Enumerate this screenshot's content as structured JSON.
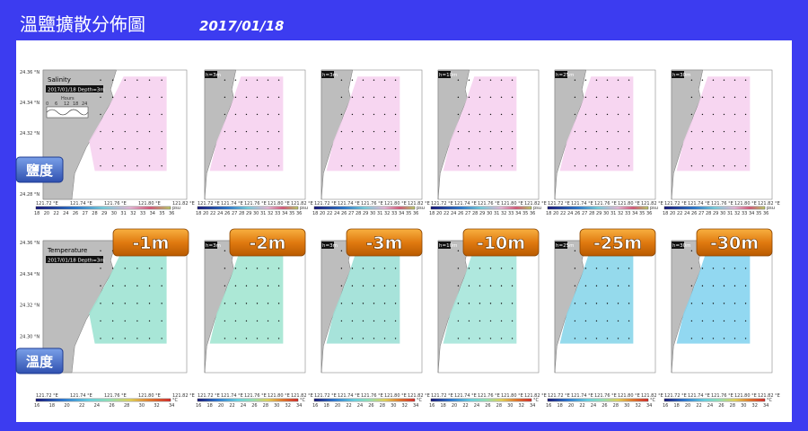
{
  "header": {
    "title": "溫鹽擴散分佈圖",
    "date": "2017/01/18"
  },
  "rows": [
    {
      "label": "鹽度",
      "variable": "Salinity",
      "unit": "psu",
      "colorbar_ticks": [
        "18",
        "20",
        "22",
        "24",
        "26",
        "27",
        "28",
        "29",
        "30",
        "31",
        "32",
        "33",
        "34",
        "35",
        "36"
      ]
    },
    {
      "label": "溫度",
      "variable": "Temperature",
      "unit": "°C",
      "colorbar_ticks": [
        "16",
        "18",
        "20",
        "22",
        "24",
        "26",
        "28",
        "30",
        "32",
        "34"
      ]
    }
  ],
  "depths": [
    "-1m",
    "-2m",
    "-3m",
    "-10m",
    "-25m",
    "-30m"
  ],
  "panel_caption": "2017/01/18 Depth=3m",
  "panel_captions_clipped": [
    "h=3m",
    "h=3m",
    "h=10m",
    "h=25m",
    "h=30m"
  ],
  "lat_labels": [
    "24.36 °N",
    "24.34 °N",
    "24.32 °N",
    "24.30 °N",
    "24.28 °N"
  ],
  "lon_labels": [
    "121.72 °E",
    "121.74 °E",
    "121.76 °E",
    "121.80 °E",
    "121.82 °E"
  ],
  "inset": {
    "title": "Hours",
    "ticks": [
      "0",
      "6",
      "12",
      "18",
      "24"
    ]
  }
}
